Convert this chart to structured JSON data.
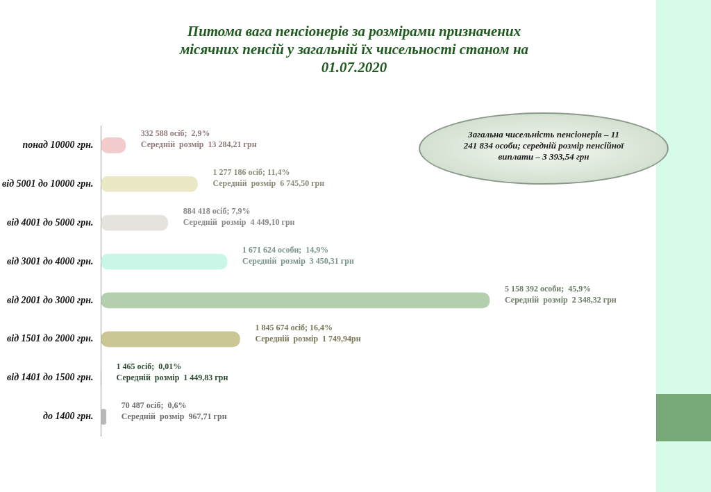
{
  "chart_data": {
    "type": "bar",
    "orientation": "horizontal",
    "title": "Питома вага пенсіонерів за розмірами призначених місячних пенсій у загальній їх чисельності станом на 01.07.2020",
    "categories": [
      "понад 10000 грн.",
      "від 5001 до 10000 грн.",
      "від 4001 до 5000 грн.",
      "від 3001 до 4000 грн.",
      "від 2001 до 3000 грн.",
      "від 1501 до 2000 грн.",
      "від 1401 до 1500 грн.",
      "до 1400 грн."
    ],
    "values": [
      2.9,
      11.4,
      7.9,
      14.9,
      45.9,
      16.4,
      0.01,
      0.6
    ],
    "colors": [
      "#f2cccc",
      "#ebe8c6",
      "#e6e3de",
      "#c9f6e6",
      "#b4cfae",
      "#cbc795",
      "#4f7d55",
      "#b8b8b8"
    ],
    "value_labels": [
      "332 588 осіб;  2,9%\nСередній  розмір  13 284,21 грн",
      "1 277 186 осіб; 11,4%\nСередній  розмір  6 745,50 грн",
      "884 418 осіб; 7,9%\nСередній  розмір  4 449,10 грн",
      "1 671 624 особи;  14,9%\nСередній  розмір  3 450,31 грн",
      "5 158 392 особи;  45,9%\nСередній  розмір  2 348,32 грн",
      "1 845 674 осіб; 16,4%\nСередній  розмір  1 749,94рн",
      "1 465 осіб;  0,01%\nСередній  розмір  1 449,83 грн",
      "70 487 осіб;  0,6%\nСередній  розмір  967,71 грн"
    ],
    "annotations": [
      "Загальна чисельність пенсіонерів – 11 241 834 особи; середній розмір пенсійної виплати – 3 393,54 грн"
    ],
    "grid": false,
    "legend": false
  }
}
